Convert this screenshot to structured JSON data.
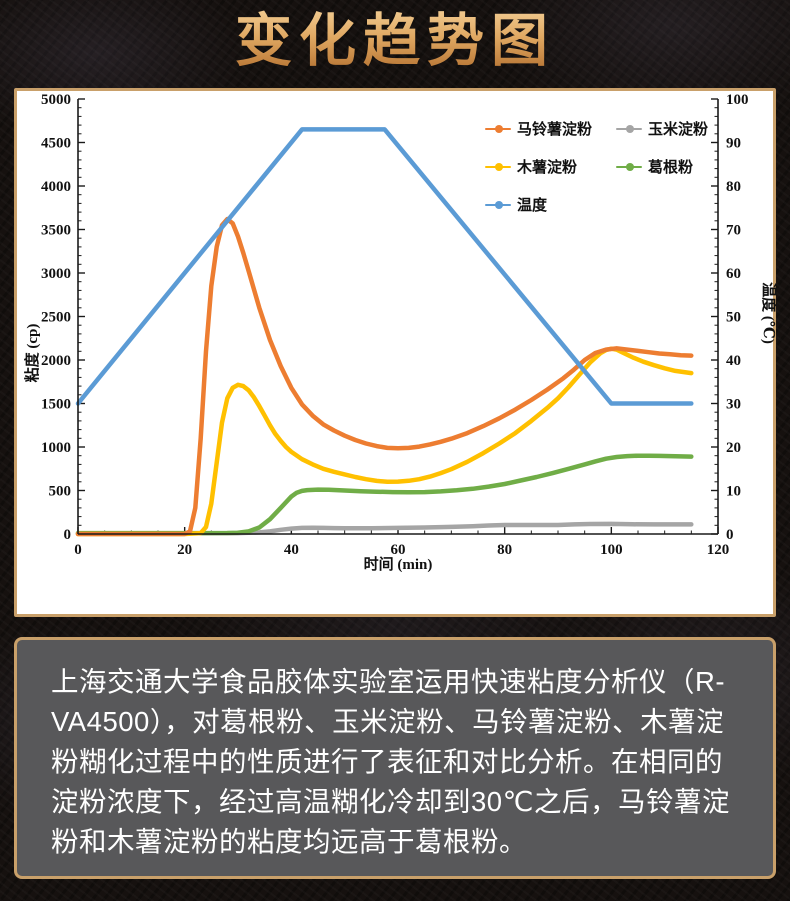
{
  "page": {
    "title": "变化趋势图"
  },
  "info": {
    "text": "上海交通大学食品胶体实验室运用快速粘度分析仪（R-VA4500），对葛根粉、玉米淀粉、马铃薯淀粉、木薯淀粉糊化过程中的性质进行了表征和对比分析。在相同的淀粉浓度下，经过高温糊化冷却到30℃之后，马铃薯淀粉和木薯淀粉的粘度均远高于葛根粉。"
  },
  "colors": {
    "panel_border": "#c9a06a",
    "info_bg": "#58585a",
    "title_gold": "#d9a05b",
    "potato_orange": "#ED7D31",
    "corn_gray": "#A5A5A5",
    "tapioca_yellow": "#FFC000",
    "kudzu_green": "#70AD47",
    "temp_blue": "#5B9BD5"
  },
  "chart_data": {
    "type": "line",
    "title": "",
    "grid": false,
    "legend_position": "top-right-inside",
    "x_axis": {
      "label": "时间 (min)",
      "min": 0,
      "max": 120,
      "major": 20,
      "minor": 5
    },
    "y_left": {
      "label": "粘度 (cp)",
      "min": 0,
      "max": 5000,
      "major": 500,
      "minor": 100
    },
    "y_right": {
      "label": "温度 (℃)",
      "min": 0,
      "max": 100,
      "major": 10,
      "minor": 2
    },
    "draw_order": [
      1,
      3,
      2,
      0,
      4
    ],
    "series": [
      {
        "name": "马铃薯淀粉",
        "color": "#ED7D31",
        "axis": "left",
        "points": [
          [
            0,
            0
          ],
          [
            5,
            0
          ],
          [
            10,
            0
          ],
          [
            15,
            0
          ],
          [
            20,
            0
          ],
          [
            21,
            30
          ],
          [
            22,
            300
          ],
          [
            23,
            1100
          ],
          [
            24,
            2100
          ],
          [
            25,
            2850
          ],
          [
            26,
            3300
          ],
          [
            27,
            3550
          ],
          [
            28,
            3620
          ],
          [
            29,
            3570
          ],
          [
            30,
            3420
          ],
          [
            31,
            3230
          ],
          [
            32,
            3020
          ],
          [
            34,
            2600
          ],
          [
            36,
            2230
          ],
          [
            38,
            1930
          ],
          [
            40,
            1680
          ],
          [
            42,
            1490
          ],
          [
            44,
            1360
          ],
          [
            46,
            1260
          ],
          [
            48,
            1190
          ],
          [
            50,
            1130
          ],
          [
            52,
            1080
          ],
          [
            54,
            1040
          ],
          [
            56,
            1010
          ],
          [
            58,
            990
          ],
          [
            60,
            985
          ],
          [
            62,
            990
          ],
          [
            64,
            1005
          ],
          [
            66,
            1030
          ],
          [
            68,
            1060
          ],
          [
            70,
            1095
          ],
          [
            73,
            1160
          ],
          [
            76,
            1240
          ],
          [
            79,
            1330
          ],
          [
            82,
            1430
          ],
          [
            85,
            1540
          ],
          [
            88,
            1660
          ],
          [
            91,
            1790
          ],
          [
            93,
            1890
          ],
          [
            95,
            2000
          ],
          [
            97,
            2080
          ],
          [
            99,
            2120
          ],
          [
            101,
            2135
          ],
          [
            103,
            2120
          ],
          [
            105,
            2105
          ],
          [
            107,
            2090
          ],
          [
            109,
            2075
          ],
          [
            111,
            2065
          ],
          [
            113,
            2055
          ],
          [
            115,
            2050
          ]
        ]
      },
      {
        "name": "玉米淀粉",
        "color": "#A5A5A5",
        "axis": "left",
        "points": [
          [
            0,
            8
          ],
          [
            10,
            8
          ],
          [
            20,
            8
          ],
          [
            30,
            10
          ],
          [
            34,
            18
          ],
          [
            36,
            30
          ],
          [
            38,
            48
          ],
          [
            40,
            62
          ],
          [
            42,
            70
          ],
          [
            44,
            72
          ],
          [
            46,
            70
          ],
          [
            48,
            68
          ],
          [
            50,
            66
          ],
          [
            55,
            65
          ],
          [
            60,
            70
          ],
          [
            65,
            75
          ],
          [
            70,
            82
          ],
          [
            74,
            90
          ],
          [
            77,
            98
          ],
          [
            80,
            103
          ],
          [
            85,
            103
          ],
          [
            90,
            104
          ],
          [
            93,
            110
          ],
          [
            96,
            115
          ],
          [
            100,
            116
          ],
          [
            104,
            112
          ],
          [
            108,
            110
          ],
          [
            112,
            110
          ],
          [
            115,
            110
          ]
        ]
      },
      {
        "name": "木薯淀粉",
        "color": "#FFC000",
        "axis": "left",
        "points": [
          [
            0,
            0
          ],
          [
            10,
            0
          ],
          [
            20,
            0
          ],
          [
            23,
            10
          ],
          [
            24,
            80
          ],
          [
            25,
            350
          ],
          [
            26,
            820
          ],
          [
            27,
            1280
          ],
          [
            28,
            1560
          ],
          [
            29,
            1680
          ],
          [
            30,
            1715
          ],
          [
            31,
            1700
          ],
          [
            32,
            1650
          ],
          [
            33,
            1570
          ],
          [
            34,
            1470
          ],
          [
            35,
            1360
          ],
          [
            36,
            1250
          ],
          [
            37,
            1150
          ],
          [
            38,
            1070
          ],
          [
            39,
            1000
          ],
          [
            40,
            945
          ],
          [
            42,
            860
          ],
          [
            44,
            800
          ],
          [
            46,
            750
          ],
          [
            48,
            715
          ],
          [
            50,
            685
          ],
          [
            52,
            655
          ],
          [
            54,
            630
          ],
          [
            56,
            610
          ],
          [
            58,
            600
          ],
          [
            60,
            602
          ],
          [
            62,
            612
          ],
          [
            64,
            630
          ],
          [
            66,
            660
          ],
          [
            68,
            700
          ],
          [
            70,
            745
          ],
          [
            73,
            830
          ],
          [
            76,
            930
          ],
          [
            79,
            1040
          ],
          [
            82,
            1160
          ],
          [
            85,
            1300
          ],
          [
            88,
            1450
          ],
          [
            90,
            1560
          ],
          [
            92,
            1690
          ],
          [
            94,
            1830
          ],
          [
            96,
            1970
          ],
          [
            98,
            2080
          ],
          [
            99,
            2115
          ],
          [
            100,
            2130
          ],
          [
            101,
            2120
          ],
          [
            102,
            2090
          ],
          [
            104,
            2030
          ],
          [
            106,
            1980
          ],
          [
            108,
            1940
          ],
          [
            110,
            1905
          ],
          [
            112,
            1875
          ],
          [
            115,
            1850
          ]
        ]
      },
      {
        "name": "葛根粉",
        "color": "#70AD47",
        "axis": "left",
        "points": [
          [
            0,
            10
          ],
          [
            10,
            10
          ],
          [
            20,
            10
          ],
          [
            28,
            12
          ],
          [
            30,
            15
          ],
          [
            32,
            30
          ],
          [
            34,
            75
          ],
          [
            36,
            170
          ],
          [
            38,
            300
          ],
          [
            40,
            430
          ],
          [
            41,
            475
          ],
          [
            42,
            495
          ],
          [
            43,
            505
          ],
          [
            45,
            510
          ],
          [
            47,
            508
          ],
          [
            50,
            500
          ],
          [
            53,
            492
          ],
          [
            56,
            486
          ],
          [
            59,
            482
          ],
          [
            62,
            480
          ],
          [
            65,
            482
          ],
          [
            68,
            490
          ],
          [
            71,
            502
          ],
          [
            74,
            520
          ],
          [
            77,
            545
          ],
          [
            80,
            575
          ],
          [
            83,
            615
          ],
          [
            86,
            655
          ],
          [
            89,
            700
          ],
          [
            92,
            750
          ],
          [
            95,
            800
          ],
          [
            97,
            835
          ],
          [
            99,
            865
          ],
          [
            101,
            885
          ],
          [
            103,
            895
          ],
          [
            105,
            900
          ],
          [
            107,
            900
          ],
          [
            109,
            898
          ],
          [
            111,
            895
          ],
          [
            113,
            892
          ],
          [
            115,
            890
          ]
        ]
      },
      {
        "name": "温度",
        "color": "#5B9BD5",
        "axis": "right",
        "points": [
          [
            0,
            30
          ],
          [
            42,
            93
          ],
          [
            57.5,
            93
          ],
          [
            100,
            30
          ],
          [
            115,
            30
          ]
        ]
      }
    ]
  }
}
